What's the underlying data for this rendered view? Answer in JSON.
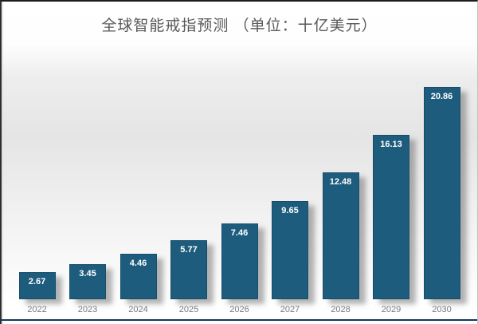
{
  "chart_data": {
    "type": "bar",
    "title": "全球智能戒指预测 （单位：十亿美元）",
    "categories": [
      "2022",
      "2023",
      "2024",
      "2025",
      "2026",
      "2027",
      "2028",
      "2029",
      "2030"
    ],
    "values": [
      2.67,
      3.45,
      4.46,
      5.77,
      7.46,
      9.65,
      12.48,
      16.13,
      20.86
    ],
    "value_labels": [
      "2.67",
      "3.45",
      "4.46",
      "5.77",
      "7.46",
      "9.65",
      "12.48",
      "16.13",
      "20.86"
    ],
    "xlabel": "",
    "ylabel": "",
    "ylim": [
      0,
      22
    ],
    "grid": false,
    "y_axis_visible": false,
    "legend": "none",
    "value_label_position": "inside-top",
    "colors": {
      "bar": "#1e5c7e",
      "value_label": "#ffffff",
      "x_tick_label": "#7c7c7c",
      "title": "#595959",
      "bottom_rule": "#17375e"
    }
  }
}
